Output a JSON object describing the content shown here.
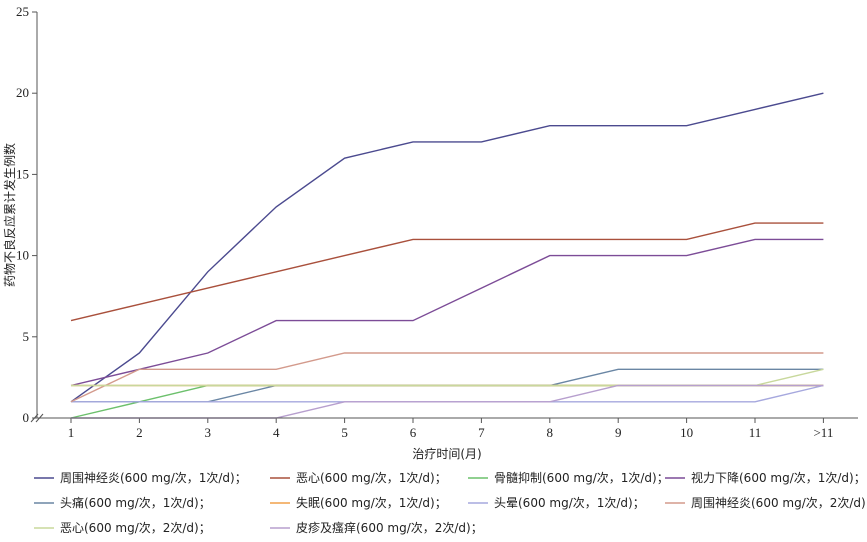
{
  "chart_data": {
    "type": "line",
    "title": "",
    "xlabel": "治疗时间(月)",
    "ylabel": "药物不良反应累计发生例数",
    "categories": [
      "1",
      "2",
      "3",
      "4",
      "5",
      "6",
      "7",
      "8",
      "9",
      "10",
      "11",
      ">11"
    ],
    "ylim": [
      0,
      25
    ],
    "yticks": [
      "0",
      "5",
      "10",
      "15",
      "20",
      "25"
    ],
    "grid": false,
    "legend_position": "bottom",
    "series": [
      {
        "name": "周围神经炎(600 mg/次，1次/d)；",
        "color": "#4b4a8f",
        "values": [
          1,
          4,
          9,
          13,
          16,
          17,
          17,
          18,
          18,
          18,
          19,
          20
        ]
      },
      {
        "name": "恶心(600 mg/次，1次/d)；",
        "color": "#a9503c",
        "values": [
          6,
          7,
          8,
          9,
          10,
          11,
          11,
          11,
          11,
          11,
          12,
          12
        ]
      },
      {
        "name": "骨髓抑制(600 mg/次，1次/d)；",
        "color": "#6cc06c",
        "values": [
          0,
          1,
          2,
          2,
          2,
          2,
          2,
          2,
          2,
          2,
          2,
          2
        ]
      },
      {
        "name": "视力下降(600 mg/次，1次/d)；",
        "color": "#7c4c97",
        "values": [
          2,
          3,
          4,
          6,
          6,
          6,
          8,
          10,
          10,
          10,
          11,
          11
        ]
      },
      {
        "name": "头痛(600 mg/次，1次/d)；",
        "color": "#6a86a4",
        "values": [
          1,
          1,
          1,
          2,
          2,
          2,
          2,
          2,
          3,
          3,
          3,
          3
        ]
      },
      {
        "name": "失眠(600 mg/次，1次/d)；",
        "color": "#f0a04a",
        "values": [
          2,
          2,
          2,
          2,
          2,
          2,
          2,
          2,
          2,
          2,
          2,
          2
        ]
      },
      {
        "name": "头晕(600 mg/次，1次/d)；",
        "color": "#a6a8de",
        "values": [
          1,
          1,
          1,
          1,
          1,
          1,
          1,
          1,
          1,
          1,
          1,
          2
        ]
      },
      {
        "name": "周围神经炎(600 mg/次，2次/d)；",
        "color": "#d39a8c",
        "values": [
          1,
          3,
          3,
          3,
          4,
          4,
          4,
          4,
          4,
          4,
          4,
          4
        ]
      },
      {
        "name": "恶心(600 mg/次，2次/d)；",
        "color": "#c8d89c",
        "values": [
          2,
          2,
          2,
          2,
          2,
          2,
          2,
          2,
          2,
          2,
          2,
          3
        ]
      },
      {
        "name": "皮疹及瘙痒(600 mg/次，2次/d)；",
        "color": "#b79fce",
        "values": [
          0,
          0,
          0,
          0,
          1,
          1,
          1,
          1,
          2,
          2,
          2,
          2
        ]
      }
    ]
  }
}
